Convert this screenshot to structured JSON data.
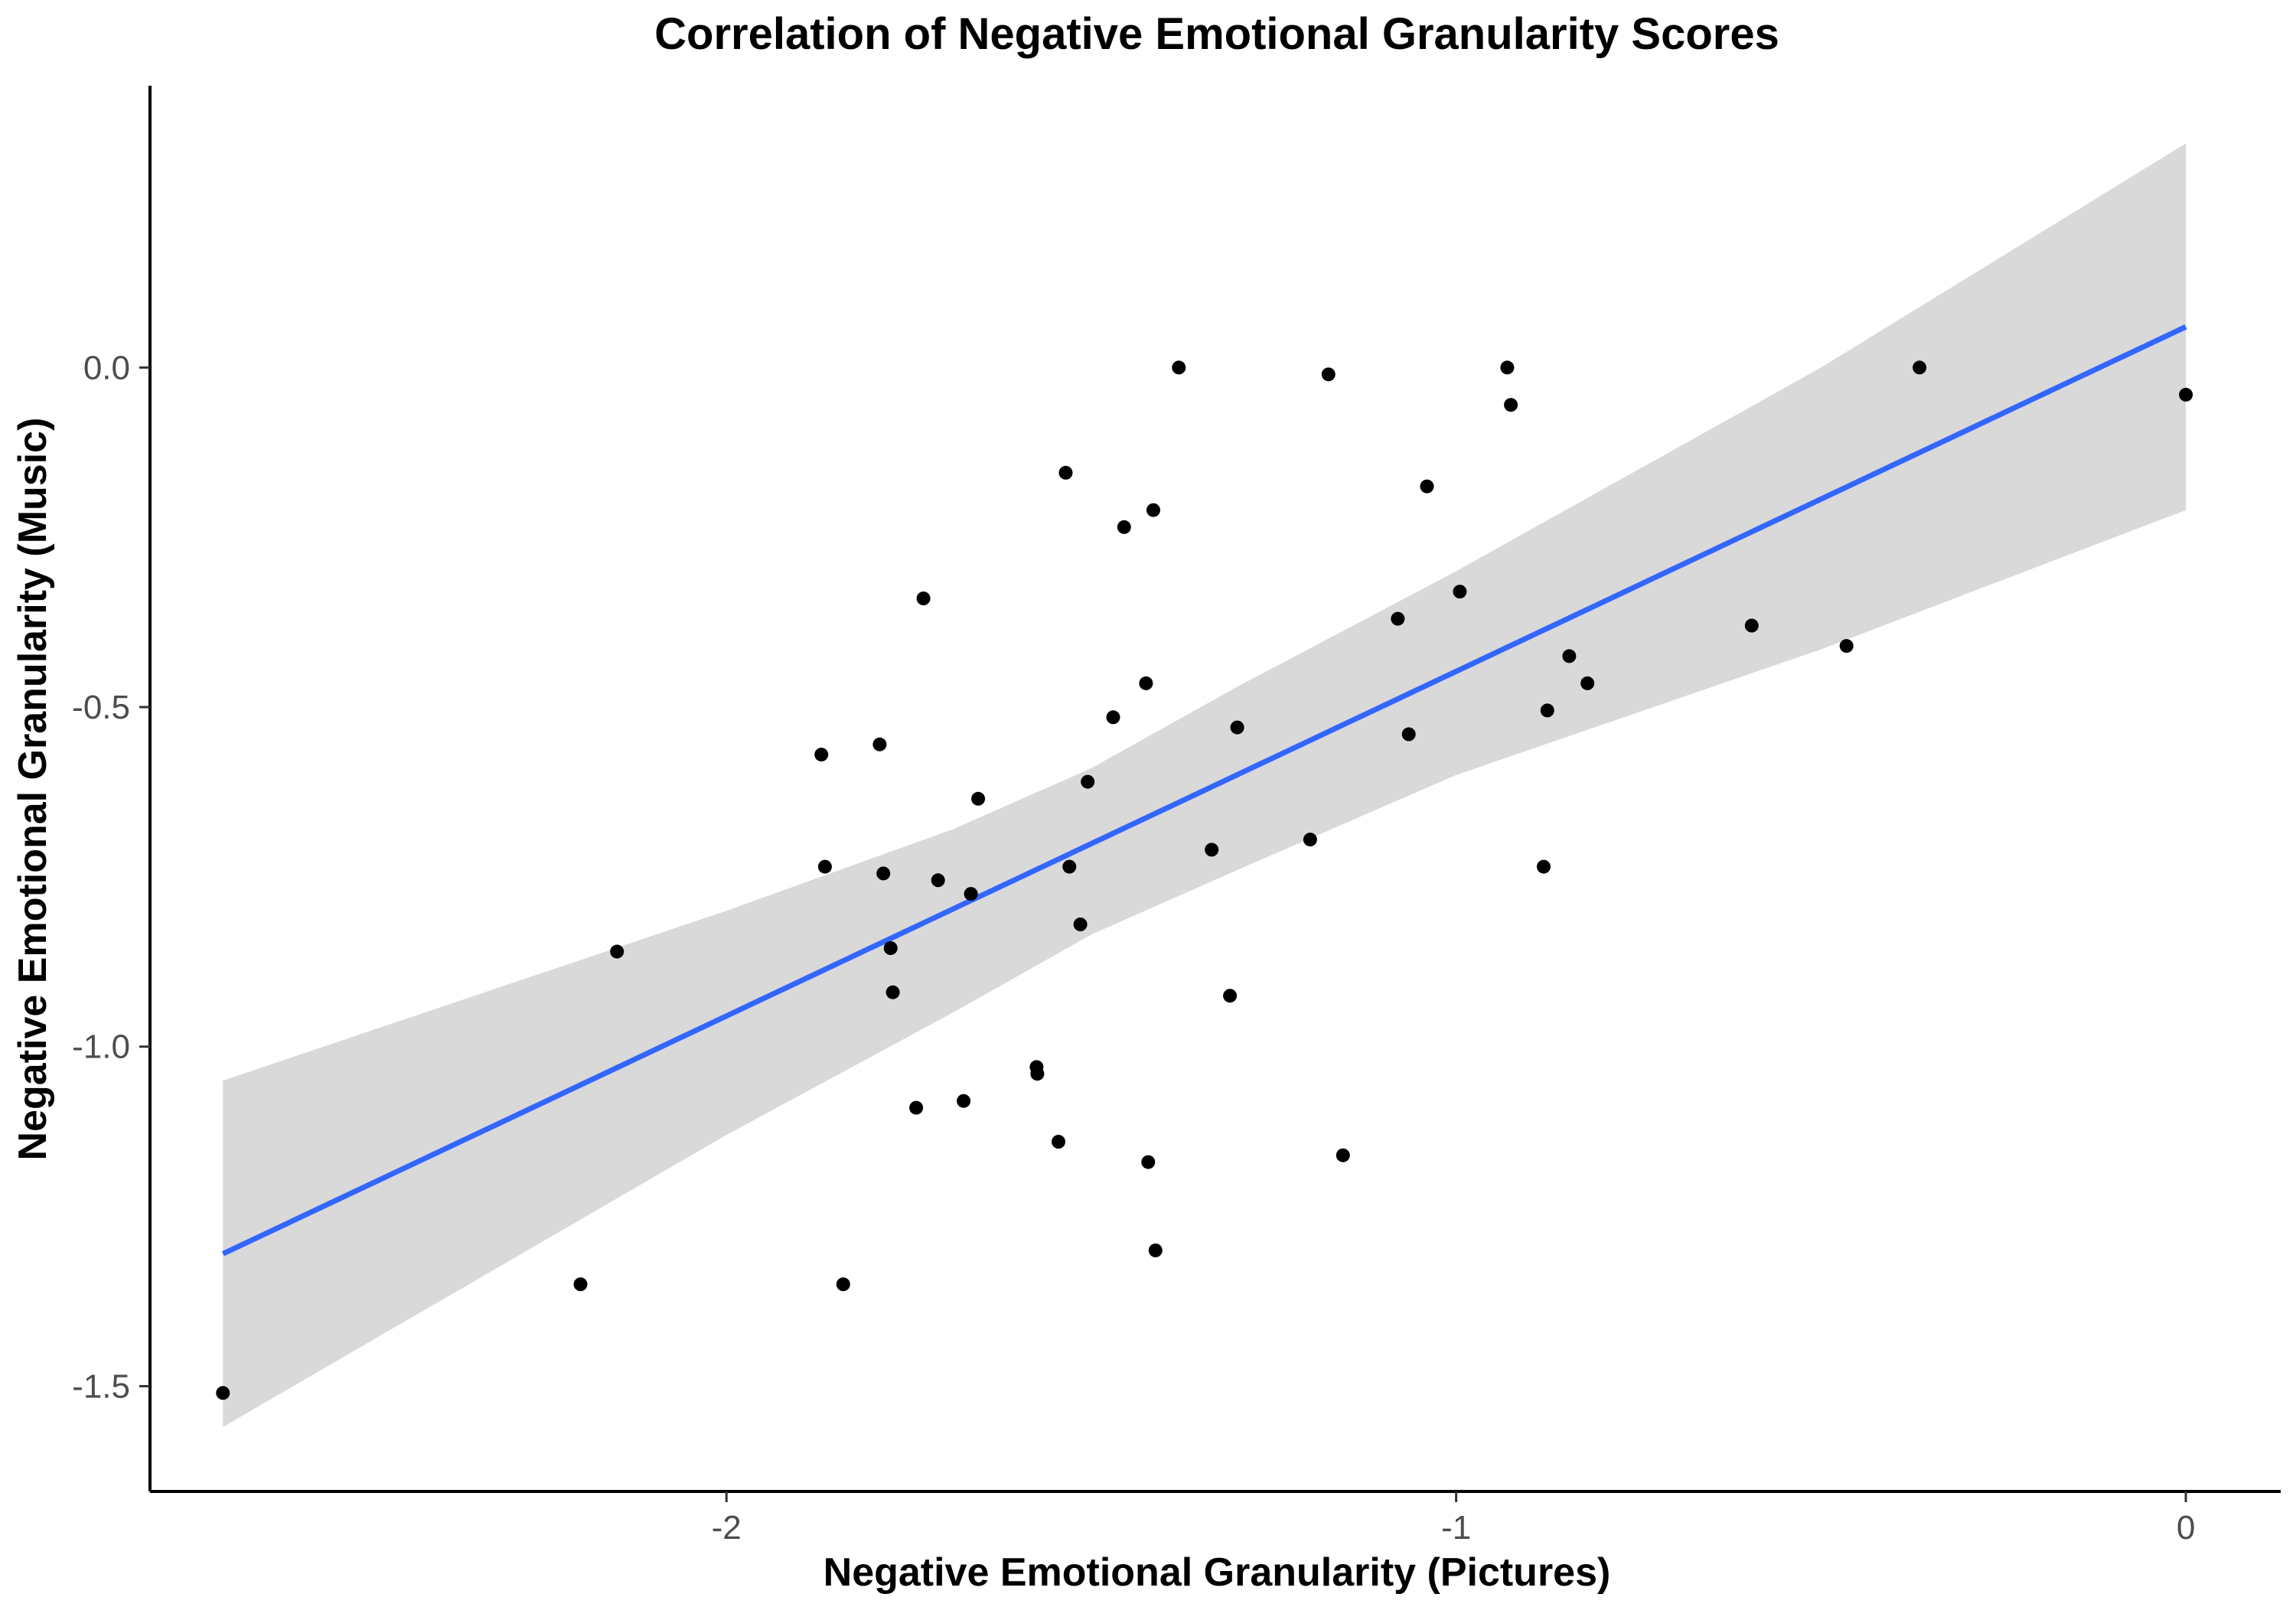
{
  "chart_data": {
    "type": "scatter",
    "title": "Correlation of Negative Emotional Granularity Scores",
    "xlabel": "Negative Emotional Granularity (Pictures)",
    "ylabel": "Negative Emotional Granularity (Music)",
    "xlim": [
      -2.79,
      0.13
    ],
    "ylim": [
      -1.655,
      0.415
    ],
    "xticks": [
      -2,
      -1,
      0
    ],
    "xtick_labels": [
      "-2",
      "-1",
      "0"
    ],
    "yticks": [
      -1.5,
      -1.0,
      -0.5,
      0.0
    ],
    "ytick_labels": [
      "-1.5",
      "-1.0",
      "-0.5",
      "0.0"
    ],
    "grid": false,
    "legend": "none",
    "colors": {
      "points": "#000000",
      "fit_line": "#3366ff",
      "confidence_band": "#d9d9d9"
    },
    "points": [
      {
        "x": -2.69,
        "y": -1.51
      },
      {
        "x": -2.2,
        "y": -1.35
      },
      {
        "x": -2.15,
        "y": -0.86
      },
      {
        "x": -1.87,
        "y": -0.57
      },
      {
        "x": -1.865,
        "y": -0.735
      },
      {
        "x": -1.84,
        "y": -1.35
      },
      {
        "x": -1.79,
        "y": -0.555
      },
      {
        "x": -1.785,
        "y": -0.745
      },
      {
        "x": -1.775,
        "y": -0.855
      },
      {
        "x": -1.772,
        "y": -0.92
      },
      {
        "x": -1.74,
        "y": -1.09
      },
      {
        "x": -1.73,
        "y": -0.34
      },
      {
        "x": -1.71,
        "y": -0.755
      },
      {
        "x": -1.675,
        "y": -1.08
      },
      {
        "x": -1.665,
        "y": -0.775
      },
      {
        "x": -1.655,
        "y": -0.635
      },
      {
        "x": -1.575,
        "y": -1.03
      },
      {
        "x": -1.574,
        "y": -1.04
      },
      {
        "x": -1.545,
        "y": -1.14
      },
      {
        "x": -1.535,
        "y": -0.155
      },
      {
        "x": -1.53,
        "y": -0.735
      },
      {
        "x": -1.515,
        "y": -0.82
      },
      {
        "x": -1.505,
        "y": -0.61
      },
      {
        "x": -1.47,
        "y": -0.515
      },
      {
        "x": -1.455,
        "y": -0.235
      },
      {
        "x": -1.425,
        "y": -0.465
      },
      {
        "x": -1.422,
        "y": -1.17
      },
      {
        "x": -1.415,
        "y": -0.21
      },
      {
        "x": -1.412,
        "y": -1.3
      },
      {
        "x": -1.38,
        "y": 0.0
      },
      {
        "x": -1.335,
        "y": -0.71
      },
      {
        "x": -1.31,
        "y": -0.925
      },
      {
        "x": -1.3,
        "y": -0.53
      },
      {
        "x": -1.2,
        "y": -0.695
      },
      {
        "x": -1.175,
        "y": -0.01
      },
      {
        "x": -1.155,
        "y": -1.16
      },
      {
        "x": -1.08,
        "y": -0.37
      },
      {
        "x": -1.065,
        "y": -0.54
      },
      {
        "x": -1.04,
        "y": -0.175
      },
      {
        "x": -0.995,
        "y": -0.33
      },
      {
        "x": -0.93,
        "y": 0.0
      },
      {
        "x": -0.925,
        "y": -0.055
      },
      {
        "x": -0.88,
        "y": -0.735
      },
      {
        "x": -0.875,
        "y": -0.505
      },
      {
        "x": -0.845,
        "y": -0.425
      },
      {
        "x": -0.82,
        "y": -0.465
      },
      {
        "x": -0.595,
        "y": -0.38
      },
      {
        "x": -0.465,
        "y": -0.41
      },
      {
        "x": -0.365,
        "y": 0.0
      },
      {
        "x": 0.0,
        "y": -0.04
      }
    ],
    "fit_line": {
      "x": [
        -2.69,
        0.0
      ],
      "y": [
        -1.305,
        0.06
      ]
    },
    "confidence_band": {
      "x": [
        -2.69,
        -2.0,
        -1.69,
        -1.5,
        -1.3,
        -1.0,
        -0.5,
        0.0
      ],
      "lower": [
        -1.56,
        -1.13,
        -0.95,
        -0.835,
        -0.74,
        -0.6,
        -0.415,
        -0.21
      ],
      "upper": [
        -1.05,
        -0.8,
        -0.68,
        -0.59,
        -0.47,
        -0.3,
        0.0,
        0.33
      ]
    }
  }
}
